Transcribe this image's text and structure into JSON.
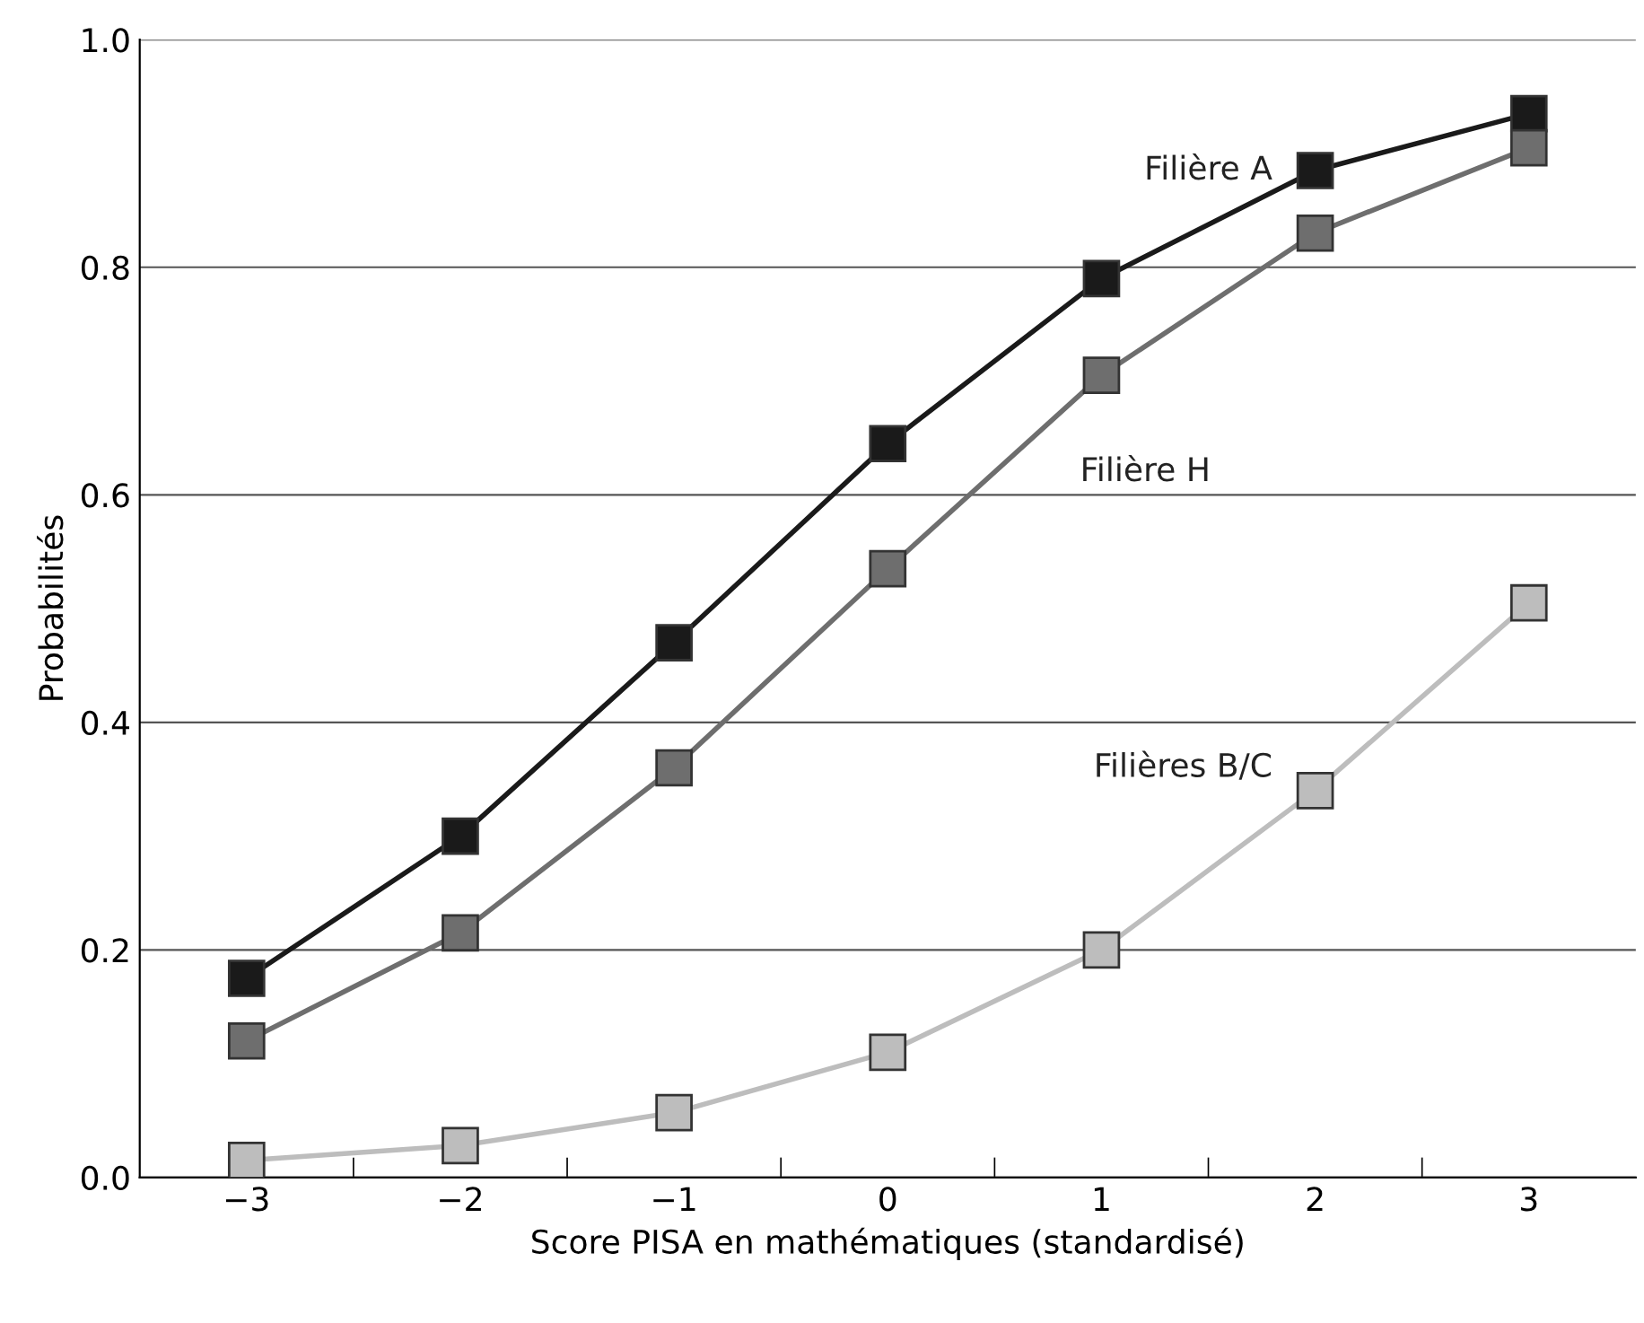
{
  "chart_data": {
    "type": "line",
    "xlabel": "Score PISA en mathématiques (standardisé)",
    "ylabel": "Probabilités",
    "categories": [
      "−3",
      "−2",
      "−1",
      "0",
      "1",
      "2",
      "3"
    ],
    "series": [
      {
        "name": "Filière A",
        "color": "#1a1a1a",
        "values": [
          0.175,
          0.3,
          0.47,
          0.645,
          0.79,
          0.885,
          0.935
        ]
      },
      {
        "name": "Filière H",
        "color": "#6e6e6e",
        "values": [
          0.12,
          0.215,
          0.36,
          0.535,
          0.705,
          0.83,
          0.905
        ]
      },
      {
        "name": "Filières B/C",
        "color": "#bdbdbd",
        "values": [
          0.015,
          0.028,
          0.057,
          0.11,
          0.2,
          0.34,
          0.505
        ]
      }
    ],
    "ylim": [
      0,
      1
    ],
    "yticks": [
      {
        "value": 0,
        "label": "0.0"
      },
      {
        "value": 0.2,
        "label": "0.2"
      },
      {
        "value": 0.4,
        "label": "0.4"
      },
      {
        "value": 0.6,
        "label": "0.6"
      },
      {
        "value": 0.8,
        "label": "0.8"
      },
      {
        "value": 1,
        "label": "1.0"
      }
    ],
    "grid": "y",
    "marker": "square",
    "line_style": "solid",
    "legend": false
  }
}
